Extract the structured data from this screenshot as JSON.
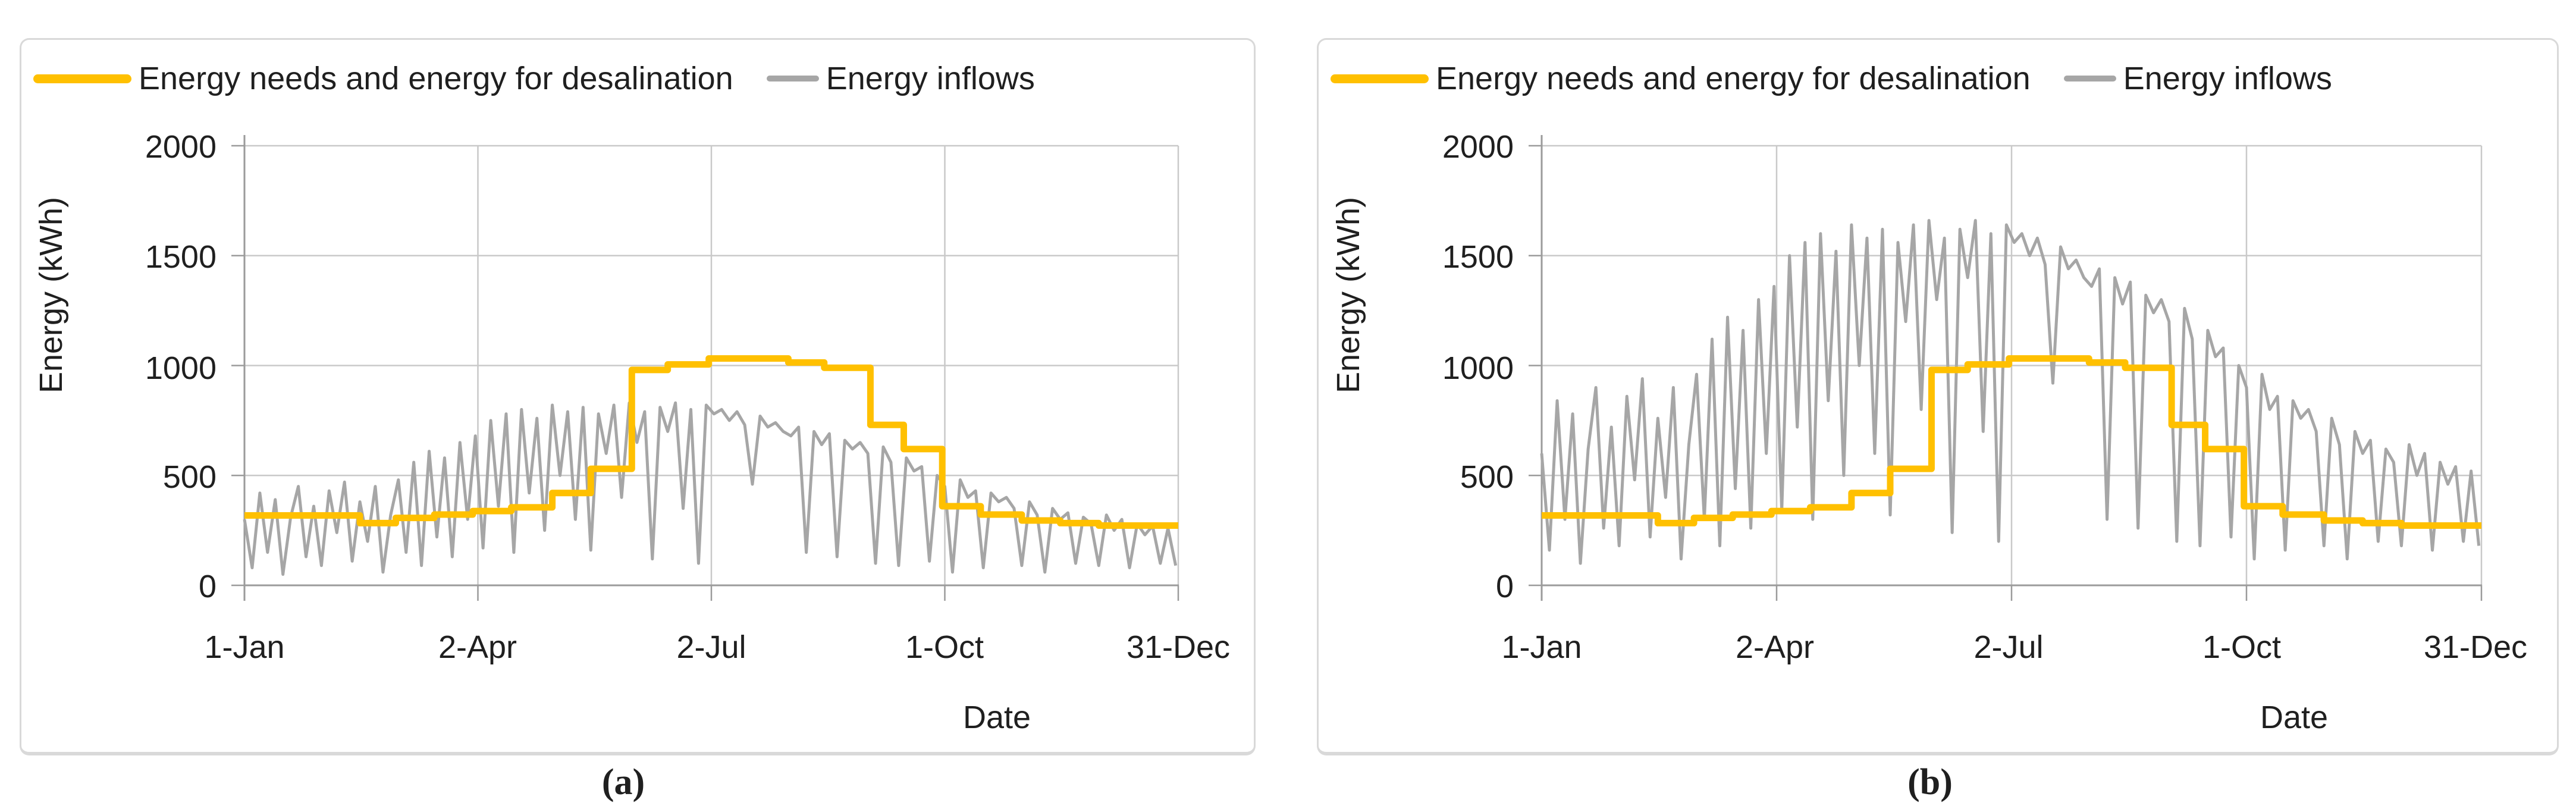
{
  "figure": {
    "background": "#ffffff",
    "captions": [
      "(a)",
      "(b)"
    ]
  },
  "axis_colors": {
    "gridline": "#c9c9c9",
    "axis_line": "#9b9b9b",
    "text": "#1f1f1f"
  },
  "chart_data": [
    {
      "type": "line",
      "panel": "a",
      "caption": "(a)",
      "title": "",
      "ylabel": "Energy (kWh)",
      "xlabel": "Date",
      "ylim": [
        0,
        2000
      ],
      "yticks": [
        0,
        500,
        1000,
        1500,
        2000
      ],
      "ytick_labels_top_to_bottom": [
        "2000",
        "1500",
        "1000",
        "500",
        "0"
      ],
      "x_tick_labels": [
        "1-Jan",
        "2-Apr",
        "2-Jul",
        "1-Oct",
        "31-Dec"
      ],
      "x_tick_days": [
        0,
        91,
        182,
        273,
        364
      ],
      "x_range_days": [
        0,
        364
      ],
      "grid": true,
      "legend_position": "top-left",
      "series": [
        {
          "name": "Energy needs and energy for desalination",
          "color": "#FFC000",
          "style": "step",
          "points_day_value": [
            [
              0,
              318
            ],
            [
              45,
              283
            ],
            [
              59,
              307
            ],
            [
              74,
              322
            ],
            [
              89,
              338
            ],
            [
              104,
              355
            ],
            [
              120,
              420
            ],
            [
              135,
              530
            ],
            [
              151,
              980
            ],
            [
              165,
              1005
            ],
            [
              181,
              1032
            ],
            [
              212,
              1014
            ],
            [
              226,
              990
            ],
            [
              244,
              730
            ],
            [
              257,
              620
            ],
            [
              272,
              360
            ],
            [
              287,
              322
            ],
            [
              303,
              295
            ],
            [
              318,
              283
            ],
            [
              333,
              272
            ],
            [
              364,
              272
            ]
          ]
        },
        {
          "name": "Energy inflows",
          "color": "#A6A6A6",
          "style": "line",
          "sample_interval_days": 3,
          "values": [
            300,
            80,
            420,
            150,
            390,
            50,
            310,
            450,
            130,
            360,
            90,
            430,
            240,
            470,
            110,
            380,
            200,
            450,
            60,
            320,
            480,
            150,
            560,
            90,
            610,
            220,
            580,
            130,
            650,
            300,
            680,
            170,
            750,
            360,
            780,
            150,
            800,
            420,
            760,
            250,
            820,
            500,
            790,
            300,
            810,
            160,
            780,
            600,
            820,
            400,
            830,
            650,
            790,
            120,
            810,
            700,
            830,
            350,
            800,
            100,
            820,
            780,
            800,
            750,
            790,
            730,
            460,
            770,
            720,
            740,
            700,
            680,
            720,
            150,
            700,
            640,
            690,
            130,
            660,
            620,
            650,
            600,
            100,
            630,
            560,
            90,
            580,
            520,
            540,
            110,
            500,
            450,
            60,
            480,
            400,
            430,
            80,
            420,
            380,
            400,
            350,
            90,
            380,
            320,
            60,
            350,
            300,
            330,
            100,
            310,
            280,
            90,
            320,
            250,
            300,
            80,
            280,
            230,
            270,
            100,
            260,
            90
          ]
        }
      ]
    },
    {
      "type": "line",
      "panel": "b",
      "caption": "(b)",
      "title": "",
      "ylabel": "Energy (kWh)",
      "xlabel": "Date",
      "ylim": [
        0,
        2000
      ],
      "yticks": [
        0,
        500,
        1000,
        1500,
        2000
      ],
      "ytick_labels_top_to_bottom": [
        "2000",
        "1500",
        "1000",
        "500",
        "0"
      ],
      "x_tick_labels": [
        "1-Jan",
        "2-Apr",
        "2-Jul",
        "1-Oct",
        "31-Dec"
      ],
      "x_tick_days": [
        0,
        91,
        182,
        273,
        364
      ],
      "x_range_days": [
        0,
        364
      ],
      "grid": true,
      "legend_position": "top-left",
      "series": [
        {
          "name": "Energy needs and energy for desalination",
          "color": "#FFC000",
          "style": "step",
          "points_day_value": [
            [
              0,
              318
            ],
            [
              45,
              283
            ],
            [
              59,
              307
            ],
            [
              74,
              322
            ],
            [
              89,
              338
            ],
            [
              104,
              355
            ],
            [
              120,
              420
            ],
            [
              135,
              530
            ],
            [
              151,
              980
            ],
            [
              165,
              1005
            ],
            [
              181,
              1032
            ],
            [
              212,
              1014
            ],
            [
              226,
              990
            ],
            [
              244,
              730
            ],
            [
              257,
              620
            ],
            [
              272,
              360
            ],
            [
              287,
              322
            ],
            [
              303,
              295
            ],
            [
              318,
              283
            ],
            [
              333,
              272
            ],
            [
              364,
              272
            ]
          ]
        },
        {
          "name": "Energy inflows",
          "color": "#A6A6A6",
          "style": "line",
          "sample_interval_days": 3,
          "values": [
            600,
            160,
            840,
            300,
            780,
            100,
            620,
            900,
            260,
            720,
            180,
            860,
            480,
            940,
            220,
            760,
            400,
            900,
            120,
            640,
            960,
            300,
            1120,
            180,
            1220,
            440,
            1160,
            260,
            1300,
            600,
            1360,
            340,
            1500,
            720,
            1560,
            300,
            1600,
            840,
            1520,
            500,
            1640,
            1000,
            1580,
            600,
            1620,
            320,
            1560,
            1200,
            1640,
            800,
            1660,
            1300,
            1580,
            240,
            1620,
            1400,
            1660,
            700,
            1600,
            200,
            1640,
            1560,
            1600,
            1500,
            1580,
            1460,
            920,
            1540,
            1440,
            1480,
            1400,
            1360,
            1440,
            300,
            1400,
            1280,
            1380,
            260,
            1320,
            1240,
            1300,
            1200,
            200,
            1260,
            1120,
            180,
            1160,
            1040,
            1080,
            220,
            1000,
            900,
            120,
            960,
            800,
            860,
            160,
            840,
            760,
            800,
            700,
            180,
            760,
            640,
            120,
            700,
            600,
            660,
            200,
            620,
            560,
            180,
            640,
            500,
            600,
            160,
            560,
            460,
            540,
            200,
            520,
            180
          ]
        }
      ]
    }
  ]
}
